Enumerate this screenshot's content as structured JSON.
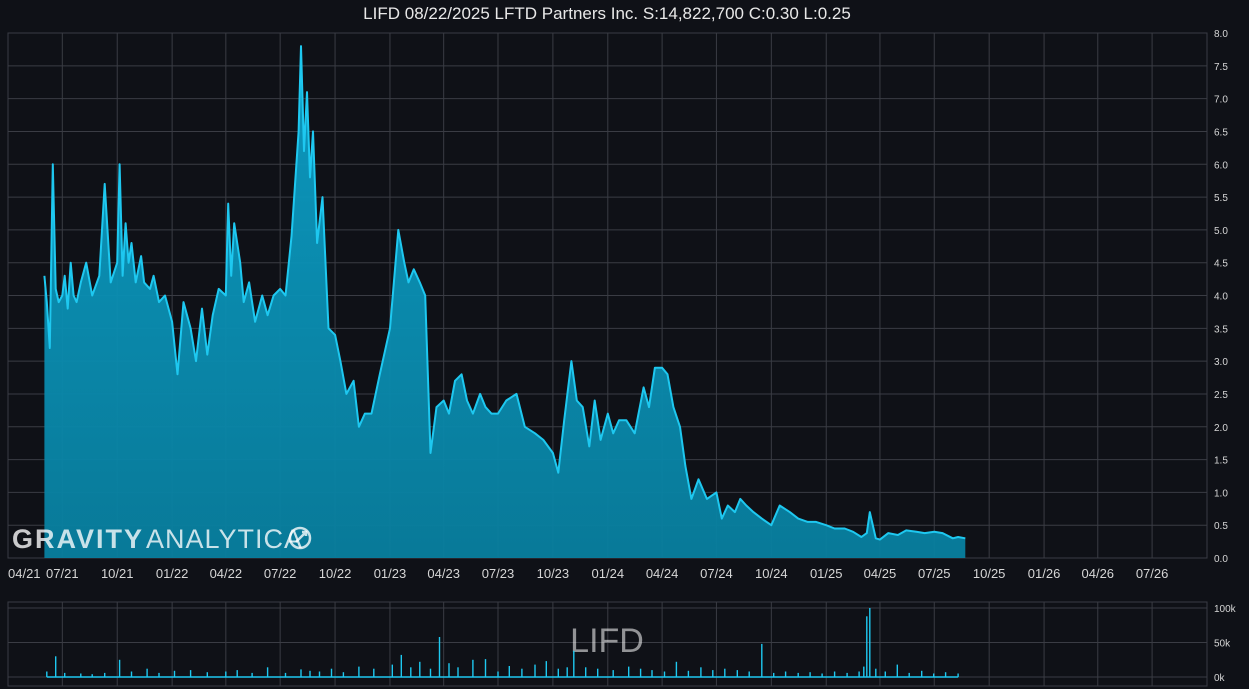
{
  "header": {
    "title": "LIFD 08/22/2025 LFTD Partners Inc. S:14,822,700 C:0.30 L:0.25"
  },
  "watermark": {
    "brand_bold": "GRAVITY",
    "brand_light": "ANALYTICA",
    "volume_symbol": "LIFD"
  },
  "colors": {
    "background": "#0f1117",
    "grid": "#3a3c44",
    "price_line": "#1ec8f0",
    "price_fill": "#0a8fb3",
    "volume_bar": "#1ec8f0",
    "axis_text": "#d6d6d6"
  },
  "chart_data": [
    {
      "type": "area",
      "title": "LIFD 08/22/2025 LFTD Partners Inc. S:14,822,700 C:0.30 L:0.25",
      "x_ticks": [
        "04/21",
        "07/21",
        "10/21",
        "01/22",
        "04/22",
        "07/22",
        "10/22",
        "01/23",
        "04/23",
        "07/23",
        "10/23",
        "01/24",
        "04/24",
        "07/24",
        "10/24",
        "01/25",
        "04/25",
        "07/25",
        "10/25",
        "01/26",
        "04/26",
        "07/26"
      ],
      "y_ticks": [
        "0.0",
        "0.5",
        "1.0",
        "1.5",
        "2.0",
        "2.5",
        "3.0",
        "3.5",
        "4.0",
        "4.5",
        "5.0",
        "5.5",
        "6.0",
        "6.5",
        "7.0",
        "7.5",
        "8.0"
      ],
      "ylim": [
        0,
        8
      ],
      "x_range": [
        "2021-04-01",
        "2026-10-01"
      ],
      "grid": true,
      "series": [
        {
          "x": [
            "2021-06-01",
            "2021-06-05",
            "2021-06-10",
            "2021-06-15",
            "2021-06-20",
            "2021-06-25",
            "2021-07-01",
            "2021-07-05",
            "2021-07-10",
            "2021-07-15",
            "2021-07-20",
            "2021-07-25",
            "2021-08-01",
            "2021-08-10",
            "2021-08-20",
            "2021-09-01",
            "2021-09-10",
            "2021-09-20",
            "2021-10-01",
            "2021-10-05",
            "2021-10-10",
            "2021-10-15",
            "2021-10-20",
            "2021-10-25",
            "2021-11-01",
            "2021-11-10",
            "2021-11-15",
            "2021-11-25",
            "2021-12-01",
            "2021-12-10",
            "2021-12-20",
            "2022-01-01",
            "2022-01-10",
            "2022-01-20",
            "2022-02-01",
            "2022-02-10",
            "2022-02-20",
            "2022-03-01",
            "2022-03-10",
            "2022-03-20",
            "2022-04-01",
            "2022-04-05",
            "2022-04-10",
            "2022-04-15",
            "2022-04-25",
            "2022-05-01",
            "2022-05-10",
            "2022-05-20",
            "2022-06-01",
            "2022-06-10",
            "2022-06-20",
            "2022-07-01",
            "2022-07-10",
            "2022-07-20",
            "2022-08-01",
            "2022-08-05",
            "2022-08-10",
            "2022-08-15",
            "2022-08-20",
            "2022-08-25",
            "2022-09-01",
            "2022-09-10",
            "2022-09-20",
            "2022-10-01",
            "2022-10-10",
            "2022-10-20",
            "2022-11-01",
            "2022-11-10",
            "2022-11-20",
            "2022-12-01",
            "2022-12-15",
            "2023-01-01",
            "2023-01-15",
            "2023-01-25",
            "2023-02-01",
            "2023-02-10",
            "2023-02-20",
            "2023-03-01",
            "2023-03-10",
            "2023-03-20",
            "2023-04-01",
            "2023-04-10",
            "2023-04-20",
            "2023-05-01",
            "2023-05-10",
            "2023-05-20",
            "2023-06-01",
            "2023-06-10",
            "2023-06-20",
            "2023-07-01",
            "2023-07-15",
            "2023-08-01",
            "2023-08-15",
            "2023-09-01",
            "2023-09-15",
            "2023-10-01",
            "2023-10-10",
            "2023-10-20",
            "2023-11-01",
            "2023-11-10",
            "2023-11-20",
            "2023-12-01",
            "2023-12-10",
            "2023-12-20",
            "2024-01-01",
            "2024-01-10",
            "2024-01-20",
            "2024-02-01",
            "2024-02-15",
            "2024-03-01",
            "2024-03-10",
            "2024-03-20",
            "2024-04-01",
            "2024-04-10",
            "2024-04-20",
            "2024-05-01",
            "2024-05-10",
            "2024-05-20",
            "2024-06-01",
            "2024-06-15",
            "2024-07-01",
            "2024-07-10",
            "2024-07-20",
            "2024-08-01",
            "2024-08-10",
            "2024-08-20",
            "2024-09-01",
            "2024-09-15",
            "2024-10-01",
            "2024-10-15",
            "2024-11-01",
            "2024-11-15",
            "2024-12-01",
            "2024-12-15",
            "2025-01-01",
            "2025-01-15",
            "2025-02-01",
            "2025-02-15",
            "2025-03-01",
            "2025-03-10",
            "2025-03-15",
            "2025-03-25",
            "2025-04-01",
            "2025-04-15",
            "2025-05-01",
            "2025-05-15",
            "2025-06-01",
            "2025-06-15",
            "2025-07-01",
            "2025-07-15",
            "2025-08-01",
            "2025-08-10",
            "2025-08-22"
          ],
          "y": [
            4.3,
            3.9,
            3.2,
            6.0,
            4.1,
            3.9,
            4.0,
            4.3,
            3.8,
            4.5,
            4.0,
            3.9,
            4.2,
            4.5,
            4.0,
            4.3,
            5.7,
            4.2,
            4.5,
            6.0,
            4.3,
            5.1,
            4.5,
            4.8,
            4.2,
            4.6,
            4.2,
            4.1,
            4.3,
            3.9,
            4.0,
            3.6,
            2.8,
            3.9,
            3.5,
            3.0,
            3.8,
            3.1,
            3.7,
            4.1,
            4.0,
            5.4,
            4.3,
            5.1,
            4.5,
            3.9,
            4.2,
            3.6,
            4.0,
            3.7,
            4.0,
            4.1,
            4.0,
            4.9,
            6.5,
            7.8,
            6.2,
            7.1,
            5.8,
            6.5,
            4.8,
            5.5,
            3.5,
            3.4,
            3.0,
            2.5,
            2.7,
            2.0,
            2.2,
            2.2,
            2.8,
            3.5,
            5.0,
            4.5,
            4.2,
            4.4,
            4.2,
            4.0,
            1.6,
            2.3,
            2.4,
            2.2,
            2.7,
            2.8,
            2.4,
            2.2,
            2.5,
            2.3,
            2.2,
            2.2,
            2.4,
            2.5,
            2.0,
            1.9,
            1.8,
            1.6,
            1.3,
            2.1,
            3.0,
            2.4,
            2.3,
            1.7,
            2.4,
            1.8,
            2.2,
            1.9,
            2.1,
            2.1,
            1.9,
            2.6,
            2.3,
            2.9,
            2.9,
            2.8,
            2.3,
            2.0,
            1.4,
            0.9,
            1.2,
            0.9,
            1.0,
            0.6,
            0.8,
            0.7,
            0.9,
            0.8,
            0.7,
            0.6,
            0.5,
            0.8,
            0.7,
            0.6,
            0.55,
            0.55,
            0.5,
            0.45,
            0.45,
            0.4,
            0.32,
            0.38,
            0.7,
            0.3,
            0.28,
            0.38,
            0.35,
            0.42,
            0.4,
            0.38,
            0.4,
            0.38,
            0.3,
            0.32,
            0.3
          ]
        }
      ]
    },
    {
      "type": "bar",
      "y_ticks": [
        "0k",
        "50k",
        "100k"
      ],
      "ylim": [
        0,
        100000
      ],
      "grid": true,
      "series": [
        {
          "x": [
            "2021-06-05",
            "2021-06-20",
            "2021-07-05",
            "2021-08-01",
            "2021-08-20",
            "2021-09-10",
            "2021-10-05",
            "2021-10-25",
            "2021-11-20",
            "2021-12-10",
            "2022-01-05",
            "2022-02-01",
            "2022-03-01",
            "2022-04-01",
            "2022-04-20",
            "2022-05-15",
            "2022-06-10",
            "2022-07-10",
            "2022-08-05",
            "2022-08-20",
            "2022-09-05",
            "2022-09-25",
            "2022-10-15",
            "2022-11-10",
            "2022-12-05",
            "2023-01-05",
            "2023-01-20",
            "2023-02-05",
            "2023-02-20",
            "2023-03-10",
            "2023-03-25",
            "2023-04-10",
            "2023-04-25",
            "2023-05-20",
            "2023-06-10",
            "2023-07-01",
            "2023-07-20",
            "2023-08-10",
            "2023-09-01",
            "2023-09-20",
            "2023-10-10",
            "2023-10-25",
            "2023-11-05",
            "2023-11-25",
            "2023-12-15",
            "2024-01-10",
            "2024-02-05",
            "2024-02-25",
            "2024-03-15",
            "2024-04-05",
            "2024-04-25",
            "2024-05-15",
            "2024-06-05",
            "2024-06-25",
            "2024-07-15",
            "2024-08-05",
            "2024-08-25",
            "2024-09-15",
            "2024-10-05",
            "2024-10-25",
            "2024-11-15",
            "2024-12-05",
            "2024-12-25",
            "2025-01-15",
            "2025-02-05",
            "2025-02-25",
            "2025-03-05",
            "2025-03-10",
            "2025-03-15",
            "2025-03-25",
            "2025-04-10",
            "2025-04-30",
            "2025-05-20",
            "2025-06-10",
            "2025-06-30",
            "2025-07-20",
            "2025-08-10"
          ],
          "values": [
            8000,
            30000,
            6000,
            5000,
            4000,
            6000,
            25000,
            8000,
            12000,
            6000,
            9000,
            10000,
            7000,
            8000,
            10000,
            6000,
            14000,
            6000,
            11000,
            9000,
            8000,
            12000,
            7000,
            15000,
            12000,
            18000,
            32000,
            14000,
            22000,
            12000,
            58000,
            20000,
            14000,
            25000,
            26000,
            8000,
            16000,
            12000,
            18000,
            23000,
            12000,
            14000,
            38000,
            14000,
            12000,
            10000,
            15000,
            12000,
            10000,
            8000,
            22000,
            9000,
            14000,
            10000,
            12000,
            10000,
            8000,
            48000,
            6000,
            8000,
            6000,
            7000,
            5000,
            8000,
            6000,
            8000,
            15000,
            88000,
            100000,
            12000,
            8000,
            18000,
            6000,
            9000,
            5000,
            7000,
            5000
          ]
        }
      ]
    }
  ]
}
